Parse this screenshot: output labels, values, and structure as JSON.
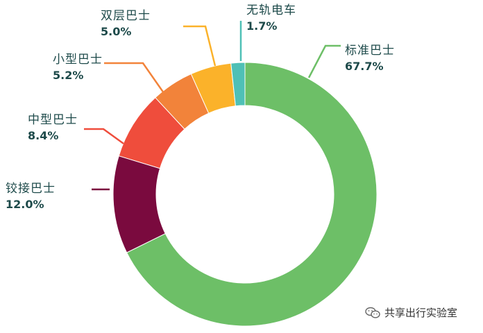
{
  "chart_data": {
    "type": "pie",
    "title": "",
    "donut": true,
    "slices": [
      {
        "label": "标准巴士",
        "value": 67.7,
        "value_label": "67.7%",
        "color": "#6dbf67"
      },
      {
        "label": "铰接巴士",
        "value": 12.0,
        "value_label": "12.0%",
        "color": "#7a0a3e"
      },
      {
        "label": "中型巴士",
        "value": 8.4,
        "value_label": "8.4%",
        "color": "#ef4d3c"
      },
      {
        "label": "小型巴士",
        "value": 5.2,
        "value_label": "5.2%",
        "color": "#f2833a"
      },
      {
        "label": "双层巴士",
        "value": 5.0,
        "value_label": "5.0%",
        "color": "#fbb22a"
      },
      {
        "label": "无轨电车",
        "value": 1.7,
        "value_label": "1.7%",
        "color": "#4fc0b6"
      }
    ]
  },
  "watermark": {
    "text": "共享出行实验室"
  }
}
